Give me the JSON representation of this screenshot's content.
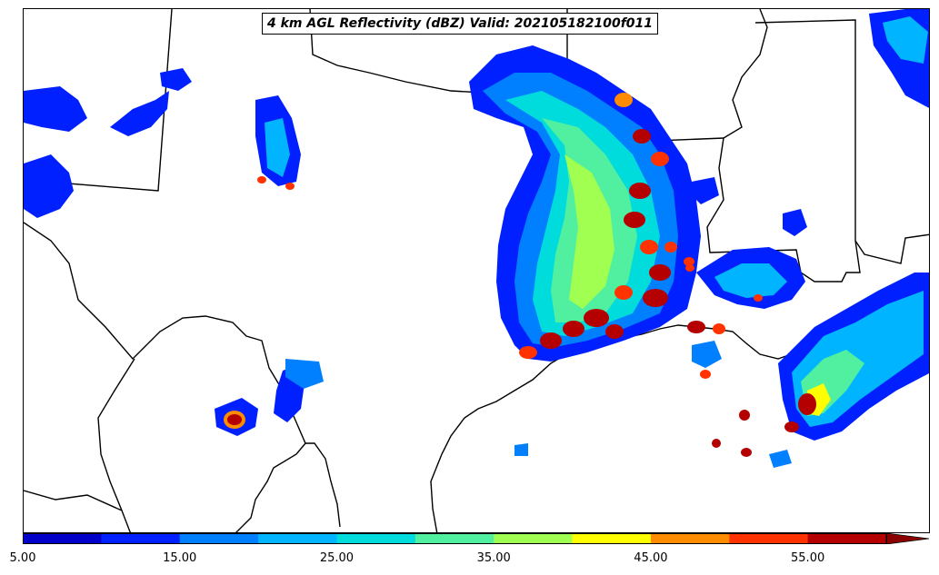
{
  "map": {
    "title": "4 km AGL Reflectivity (dBZ) Valid: 202105182100f011"
  },
  "colorbar": {
    "bands": [
      {
        "from": 5,
        "to": 10,
        "color": "#0000c8"
      },
      {
        "from": 10,
        "to": 15,
        "color": "#0020ff"
      },
      {
        "from": 15,
        "to": 20,
        "color": "#0080ff"
      },
      {
        "from": 20,
        "to": 25,
        "color": "#00b4ff"
      },
      {
        "from": 25,
        "to": 30,
        "color": "#00dcdc"
      },
      {
        "from": 30,
        "to": 35,
        "color": "#50f0a0"
      },
      {
        "from": 35,
        "to": 40,
        "color": "#a0ff50"
      },
      {
        "from": 40,
        "to": 45,
        "color": "#ffff00"
      },
      {
        "from": 45,
        "to": 50,
        "color": "#ff8c00"
      },
      {
        "from": 50,
        "to": 55,
        "color": "#ff3200"
      },
      {
        "from": 55,
        "to": 60,
        "color": "#b40000"
      }
    ],
    "extend_color": "#8b0000",
    "ticks": [
      "5.00",
      "15.00",
      "25.00",
      "35.00",
      "45.00",
      "55.00"
    ]
  }
}
